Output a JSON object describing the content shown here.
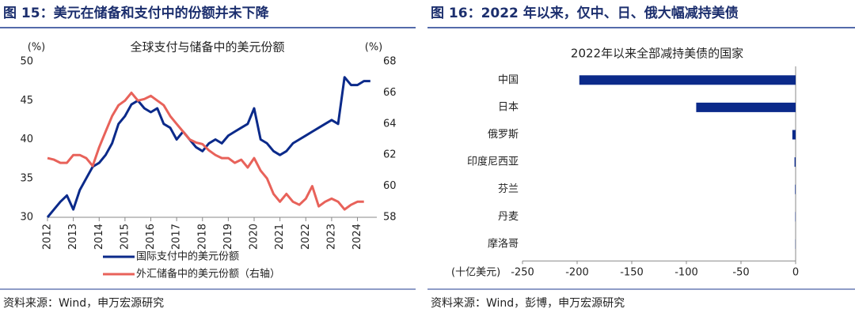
{
  "panels": [
    {
      "header": "图 15：美元在储备和支付中的份额并未下降",
      "source": "资料来源：Wind，申万宏源研究"
    },
    {
      "header": "图 16：2022 年以来，仅中、日、俄大幅减持美债",
      "source": "资料来源：Wind，彭博，申万宏源研究"
    }
  ],
  "chart_data": [
    {
      "type": "line",
      "title": "全球支付与储备中的美元份额",
      "y_label": "(%)",
      "y2_label": "(%)",
      "x": [
        2012,
        2012.25,
        2012.5,
        2012.75,
        2013,
        2013.25,
        2013.5,
        2013.75,
        2014,
        2014.25,
        2014.5,
        2014.75,
        2015,
        2015.25,
        2015.5,
        2015.75,
        2016,
        2016.25,
        2016.5,
        2016.75,
        2017,
        2017.25,
        2017.5,
        2017.75,
        2018,
        2018.25,
        2018.5,
        2018.75,
        2019,
        2019.25,
        2019.5,
        2019.75,
        2020,
        2020.25,
        2020.5,
        2020.75,
        2021,
        2021.25,
        2021.5,
        2021.75,
        2022,
        2022.25,
        2022.5,
        2022.75,
        2023,
        2023.25,
        2023.5,
        2023.75,
        2024,
        2024.25,
        2024.5
      ],
      "xlim": [
        2012,
        2024.75
      ],
      "xticks": [
        2012,
        2013,
        2014,
        2015,
        2016,
        2017,
        2018,
        2019,
        2020,
        2021,
        2022,
        2023,
        2024
      ],
      "ylim": [
        30,
        50
      ],
      "yticks": [
        30,
        35,
        40,
        45,
        50
      ],
      "y2lim": [
        58,
        68
      ],
      "y2ticks": [
        58,
        60,
        62,
        64,
        66,
        68
      ],
      "legend": "bottom",
      "series": [
        {
          "name": "国际支付中的美元份额",
          "color": "#0b2a8a",
          "values": [
            30,
            31,
            32,
            32.8,
            31,
            33.5,
            35,
            36.5,
            37,
            38,
            39.5,
            42,
            43,
            44.5,
            45,
            44,
            43.5,
            44,
            42,
            41.5,
            40,
            41,
            40,
            39,
            38.5,
            39.5,
            40,
            39.5,
            40.5,
            41,
            41.5,
            42,
            44,
            40,
            39.5,
            38.5,
            38,
            38.5,
            39.5,
            40,
            40.5,
            41,
            41.5,
            42,
            42.5,
            42,
            48,
            47,
            47,
            47.5,
            47.5
          ]
        },
        {
          "name": "外汇储备中的美元份额（右轴）",
          "color": "#e8625a",
          "axis": "y2",
          "values": [
            61.8,
            61.7,
            61.5,
            61.5,
            62,
            62,
            61.8,
            61.3,
            62.5,
            63.5,
            64.5,
            65.2,
            65.5,
            66,
            65.5,
            65.6,
            65.8,
            65.5,
            65.2,
            64.5,
            64,
            63.5,
            63,
            62.8,
            62.7,
            62.3,
            62,
            61.8,
            61.8,
            61.5,
            61.7,
            61.2,
            61.8,
            61,
            60.5,
            59.5,
            59,
            59.5,
            59,
            58.8,
            59.2,
            60,
            58.7,
            59,
            59.2,
            59,
            58.5,
            58.8,
            59,
            59,
            null
          ]
        }
      ]
    },
    {
      "type": "hbar",
      "title": "2022年以来全部减持美债的国家",
      "x_label": "(十亿美元)",
      "color": "#0b2a8a",
      "categories": [
        "中国",
        "日本",
        "俄罗斯",
        "印度尼西亚",
        "芬兰",
        "丹麦",
        "摩洛哥"
      ],
      "values": [
        -198,
        -91,
        -3,
        -1,
        -0.5,
        -0.3,
        -0.2
      ],
      "xlim": [
        -250,
        0
      ],
      "xticks": [
        -250,
        -200,
        -150,
        -100,
        -50,
        0
      ]
    }
  ]
}
